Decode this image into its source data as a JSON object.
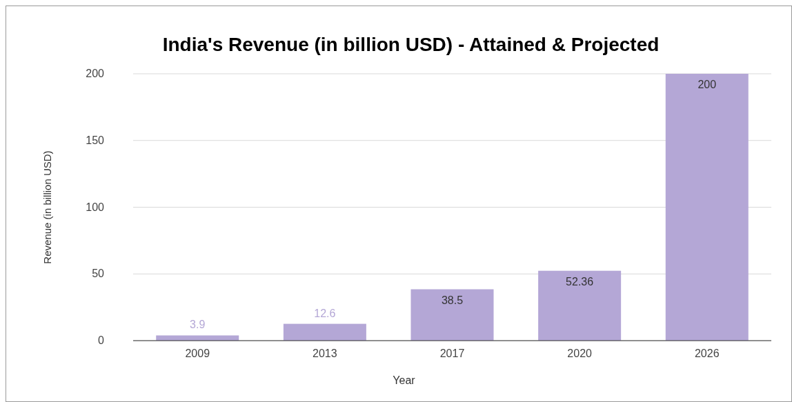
{
  "chart_data": {
    "type": "bar",
    "title": "India's Revenue (in billion USD) - Attained & Projected",
    "xlabel": "Year",
    "ylabel": "Revenue (in billion USD)",
    "categories": [
      "2009",
      "2013",
      "2017",
      "2020",
      "2026"
    ],
    "values": [
      3.9,
      12.6,
      38.5,
      52.36,
      200
    ],
    "color": "#b4a7d6",
    "ylim": [
      0,
      200
    ],
    "yticks": [
      0,
      50,
      100,
      150,
      200
    ],
    "grid": "y",
    "data_labels": true
  }
}
